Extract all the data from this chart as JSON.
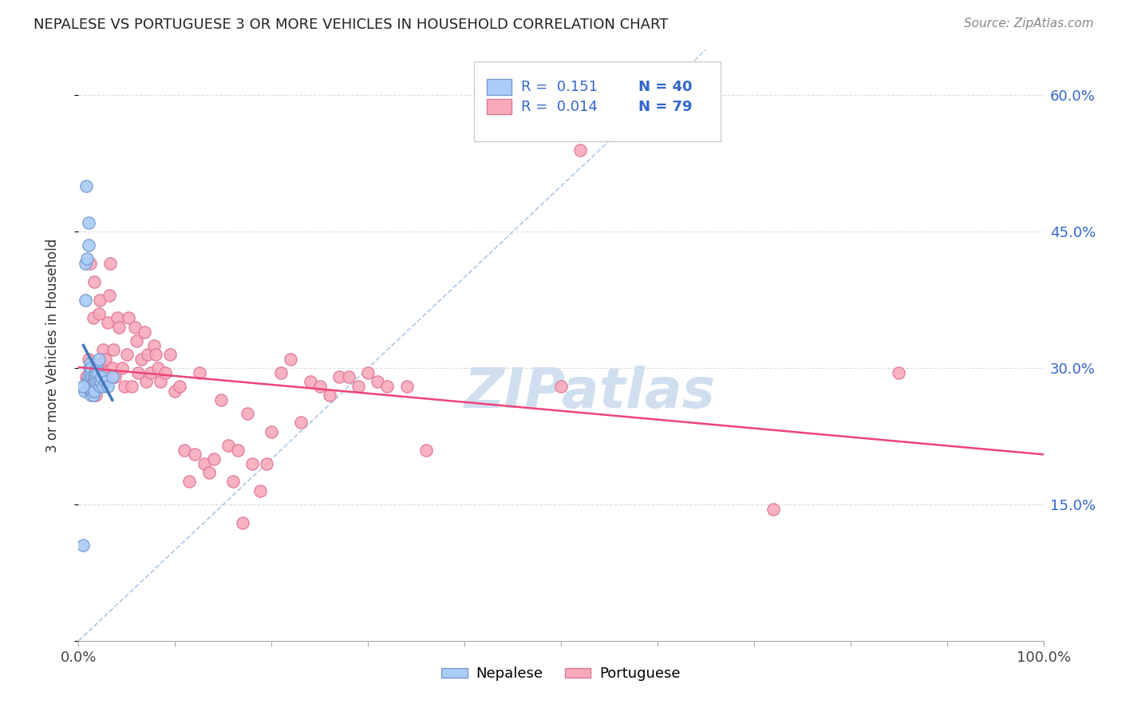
{
  "title": "NEPALESE VS PORTUGUESE 3 OR MORE VEHICLES IN HOUSEHOLD CORRELATION CHART",
  "source": "Source: ZipAtlas.com",
  "ylabel": "3 or more Vehicles in Household",
  "xlim": [
    0.0,
    1.0
  ],
  "ylim": [
    0.0,
    0.65
  ],
  "yticks": [
    0.0,
    0.15,
    0.3,
    0.45,
    0.6
  ],
  "ytick_labels": [
    "",
    "15.0%",
    "30.0%",
    "45.0%",
    "60.0%"
  ],
  "xticks": [
    0.0,
    0.1,
    0.2,
    0.3,
    0.4,
    0.5,
    0.6,
    0.7,
    0.8,
    0.9,
    1.0
  ],
  "xtick_labels": [
    "0.0%",
    "",
    "",
    "",
    "",
    "",
    "",
    "",
    "",
    "",
    "100.0%"
  ],
  "nepalese_color": "#aaccf8",
  "portuguese_color": "#f8aabb",
  "nepalese_edge": "#7799cc",
  "portuguese_edge": "#dd7799",
  "trend_nepalese_color": "#4477bb",
  "trend_portuguese_color": "#ee4477",
  "diagonal_color": "#99bbdd",
  "watermark_color": "#d0dff0",
  "background_color": "#ffffff",
  "grid_color": "#dddddd",
  "legend_text_color": "#3366cc",
  "nepalese_x": [
    0.005,
    0.006,
    0.007,
    0.007,
    0.008,
    0.009,
    0.009,
    0.01,
    0.01,
    0.01,
    0.011,
    0.011,
    0.012,
    0.012,
    0.012,
    0.013,
    0.013,
    0.013,
    0.014,
    0.014,
    0.015,
    0.015,
    0.016,
    0.016,
    0.017,
    0.017,
    0.018,
    0.018,
    0.019,
    0.02,
    0.02,
    0.021,
    0.022,
    0.023,
    0.024,
    0.025,
    0.028,
    0.03,
    0.035,
    0.005
  ],
  "nepalese_y": [
    0.105,
    0.275,
    0.375,
    0.415,
    0.5,
    0.285,
    0.42,
    0.29,
    0.435,
    0.46,
    0.285,
    0.3,
    0.275,
    0.295,
    0.305,
    0.27,
    0.28,
    0.3,
    0.275,
    0.29,
    0.27,
    0.285,
    0.275,
    0.29,
    0.285,
    0.295,
    0.285,
    0.295,
    0.3,
    0.285,
    0.295,
    0.31,
    0.28,
    0.285,
    0.29,
    0.28,
    0.285,
    0.28,
    0.29,
    0.28
  ],
  "portuguese_x": [
    0.008,
    0.01,
    0.012,
    0.015,
    0.016,
    0.018,
    0.018,
    0.02,
    0.021,
    0.022,
    0.024,
    0.025,
    0.026,
    0.028,
    0.028,
    0.03,
    0.032,
    0.033,
    0.035,
    0.036,
    0.038,
    0.04,
    0.042,
    0.045,
    0.048,
    0.05,
    0.052,
    0.055,
    0.058,
    0.06,
    0.062,
    0.065,
    0.068,
    0.07,
    0.072,
    0.075,
    0.078,
    0.08,
    0.082,
    0.085,
    0.09,
    0.095,
    0.1,
    0.105,
    0.11,
    0.115,
    0.12,
    0.125,
    0.13,
    0.135,
    0.14,
    0.148,
    0.155,
    0.16,
    0.165,
    0.17,
    0.175,
    0.18,
    0.188,
    0.195,
    0.2,
    0.21,
    0.22,
    0.23,
    0.24,
    0.25,
    0.26,
    0.27,
    0.28,
    0.29,
    0.3,
    0.31,
    0.32,
    0.34,
    0.36,
    0.5,
    0.52,
    0.72,
    0.85
  ],
  "portuguese_y": [
    0.29,
    0.31,
    0.415,
    0.355,
    0.395,
    0.27,
    0.285,
    0.295,
    0.36,
    0.375,
    0.305,
    0.32,
    0.285,
    0.31,
    0.295,
    0.35,
    0.38,
    0.415,
    0.3,
    0.32,
    0.29,
    0.355,
    0.345,
    0.3,
    0.28,
    0.315,
    0.355,
    0.28,
    0.345,
    0.33,
    0.295,
    0.31,
    0.34,
    0.285,
    0.315,
    0.295,
    0.325,
    0.315,
    0.3,
    0.285,
    0.295,
    0.315,
    0.275,
    0.28,
    0.21,
    0.175,
    0.205,
    0.295,
    0.195,
    0.185,
    0.2,
    0.265,
    0.215,
    0.175,
    0.21,
    0.13,
    0.25,
    0.195,
    0.165,
    0.195,
    0.23,
    0.295,
    0.31,
    0.24,
    0.285,
    0.28,
    0.27,
    0.29,
    0.29,
    0.28,
    0.295,
    0.285,
    0.28,
    0.28,
    0.21,
    0.28,
    0.54,
    0.145,
    0.295
  ]
}
